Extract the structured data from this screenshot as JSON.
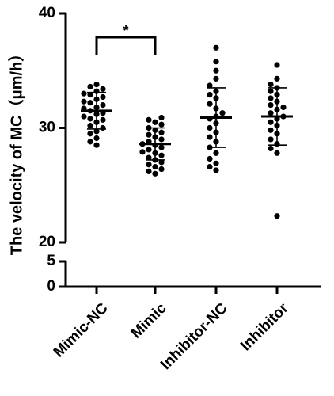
{
  "chart_data": {
    "type": "scatter",
    "title": "",
    "xlabel": "",
    "ylabel": "The velocity of MC（μm/h）",
    "y_axis": {
      "broken": true,
      "lower_segment": {
        "range": [
          0,
          5
        ],
        "ticks": [
          0,
          5
        ]
      },
      "upper_segment": {
        "range": [
          20,
          40
        ],
        "ticks": [
          20,
          30,
          40
        ]
      }
    },
    "categories": [
      "Mimic-NC",
      "Mimic",
      "Inhibitor-NC",
      "Inhibitor"
    ],
    "series": [
      {
        "category": "Mimic-NC",
        "mean": 31.5,
        "sd": 1.6,
        "values": [
          33.8,
          33.6,
          33.4,
          33.2,
          33.0,
          32.9,
          32.7,
          32.5,
          32.3,
          32.2,
          32.0,
          31.8,
          31.7,
          31.5,
          31.3,
          31.2,
          31.0,
          30.8,
          30.7,
          30.5,
          30.2,
          30.0,
          29.7,
          29.5,
          29.1,
          28.8,
          28.5
        ]
      },
      {
        "category": "Mimic",
        "mean": 28.6,
        "sd": 1.4,
        "values": [
          30.9,
          30.7,
          30.5,
          30.3,
          30.0,
          29.8,
          29.6,
          29.4,
          29.2,
          29.0,
          28.8,
          28.6,
          28.5,
          28.3,
          28.1,
          27.9,
          27.8,
          27.6,
          27.4,
          27.2,
          27.0,
          26.8,
          26.6,
          26.4,
          26.2,
          26.0
        ]
      },
      {
        "category": "Inhibitor-NC",
        "mean": 30.9,
        "sd": 2.6,
        "values": [
          37.0,
          35.8,
          35.0,
          34.3,
          33.7,
          33.2,
          32.9,
          32.6,
          32.1,
          31.7,
          31.3,
          31.0,
          30.8,
          30.4,
          30.0,
          29.6,
          29.2,
          28.8,
          28.3,
          27.8,
          27.3,
          26.9,
          26.6,
          26.3
        ]
      },
      {
        "category": "Inhibitor",
        "mean": 31.0,
        "sd": 2.5,
        "values": [
          35.5,
          34.3,
          33.8,
          33.5,
          33.2,
          32.9,
          32.6,
          32.3,
          32.0,
          31.8,
          31.6,
          31.3,
          31.0,
          30.8,
          30.5,
          30.2,
          29.8,
          29.5,
          29.0,
          28.6,
          28.2,
          27.8,
          22.3
        ]
      }
    ],
    "annotations": [
      {
        "text": "*",
        "between": [
          "Mimic-NC",
          "Mimic"
        ]
      }
    ]
  }
}
